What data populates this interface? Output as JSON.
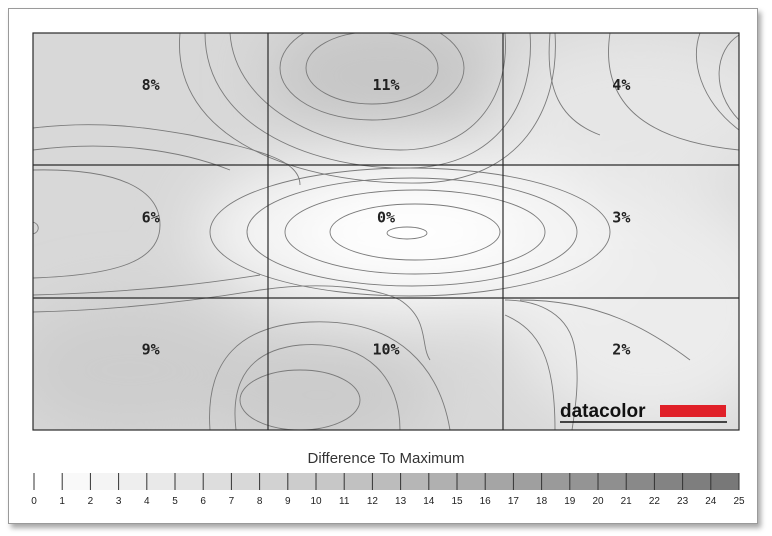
{
  "chart_data": {
    "type": "heatmap",
    "rows": 3,
    "cols": 3,
    "values": [
      [
        8,
        11,
        4
      ],
      [
        6,
        0,
        3
      ],
      [
        9,
        10,
        2
      ]
    ],
    "labels": [
      [
        "8%",
        "11%",
        "4%"
      ],
      [
        "6%",
        "0%",
        "3%"
      ],
      [
        "9%",
        "10%",
        "2%"
      ]
    ],
    "legend": {
      "title": "Difference To Maximum",
      "min": 0,
      "max": 25,
      "ticks": [
        "0",
        "1",
        "2",
        "3",
        "4",
        "5",
        "6",
        "7",
        "8",
        "9",
        "10",
        "11",
        "12",
        "13",
        "14",
        "15",
        "16",
        "17",
        "18",
        "19",
        "20",
        "21",
        "22",
        "23",
        "24",
        "25"
      ]
    },
    "grid": true
  },
  "brand": {
    "name": "datacolor",
    "color": "#e02028"
  }
}
